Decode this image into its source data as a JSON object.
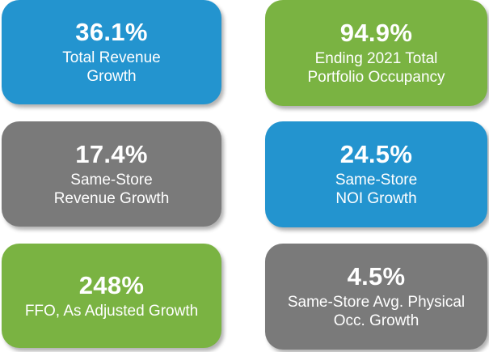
{
  "colors": {
    "blue": "#2394cf",
    "green": "#7ab342",
    "gray": "#7a7a7a",
    "text": "#ffffff"
  },
  "tiles": [
    {
      "value": "36.1%",
      "label_lines": [
        "Total Revenue",
        "Growth"
      ],
      "color": "blue"
    },
    {
      "value": "94.9%",
      "label_lines": [
        "Ending 2021 Total",
        "Portfolio Occupancy"
      ],
      "color": "green"
    },
    {
      "value": "17.4%",
      "label_lines": [
        "Same-Store",
        "Revenue Growth"
      ],
      "color": "gray"
    },
    {
      "value": "24.5%",
      "label_lines": [
        "Same-Store",
        "NOI Growth"
      ],
      "color": "blue"
    },
    {
      "value": "248%",
      "label_lines": [
        "FFO, As Adjusted Growth"
      ],
      "color": "green"
    },
    {
      "value": "4.5%",
      "label_lines": [
        "Same-Store Avg. Physical",
        "Occ. Growth"
      ],
      "color": "gray"
    }
  ]
}
